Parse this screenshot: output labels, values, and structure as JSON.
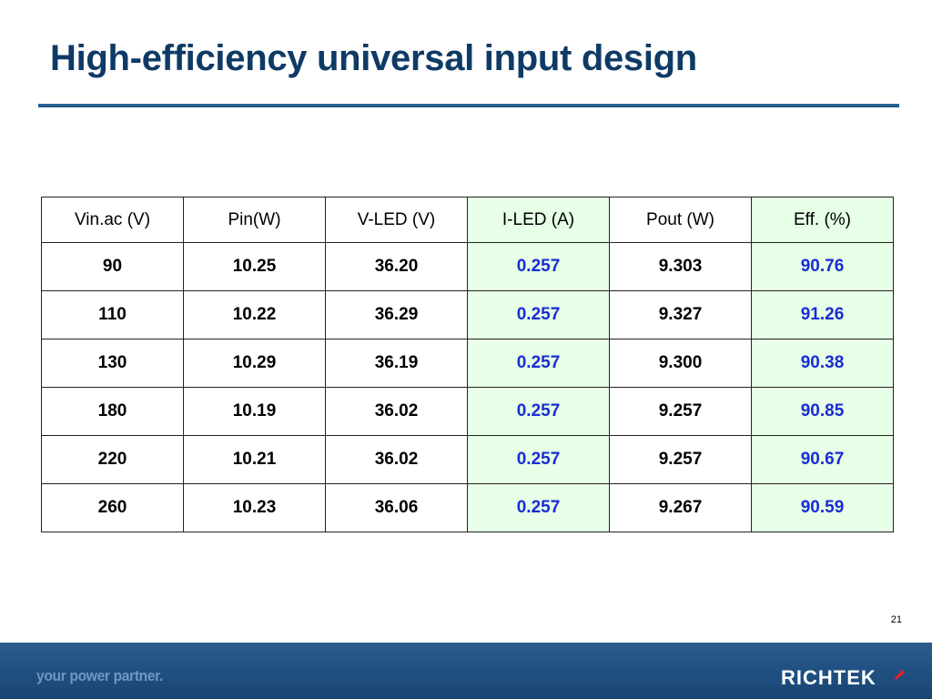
{
  "slide": {
    "title": "High-efficiency universal input design",
    "page_number": "21"
  },
  "table": {
    "headers": [
      "Vin.ac (V)",
      "Pin(W)",
      "V-LED (V)",
      "I-LED (A)",
      "Pout (W)",
      "Eff. (%)"
    ],
    "rows": [
      [
        "90",
        "10.25",
        "36.20",
        "0.257",
        "9.303",
        "90.76"
      ],
      [
        "110",
        "10.22",
        "36.29",
        "0.257",
        "9.327",
        "91.26"
      ],
      [
        "130",
        "10.29",
        "36.19",
        "0.257",
        "9.300",
        "90.38"
      ],
      [
        "180",
        "10.19",
        "36.02",
        "0.257",
        "9.257",
        "90.85"
      ],
      [
        "220",
        "10.21",
        "36.02",
        "0.257",
        "9.257",
        "90.67"
      ],
      [
        "260",
        "10.23",
        "36.06",
        "0.257",
        "9.267",
        "90.59"
      ]
    ],
    "highlight_columns": [
      3,
      5
    ],
    "colors": {
      "highlight_bg": "#e6ffe6",
      "highlight_text": "#1a2cd6",
      "title": "#0e3a66",
      "footer": "#1f4f80"
    }
  },
  "footer": {
    "tagline": "your power partner.",
    "logo": "RICHTEK"
  }
}
